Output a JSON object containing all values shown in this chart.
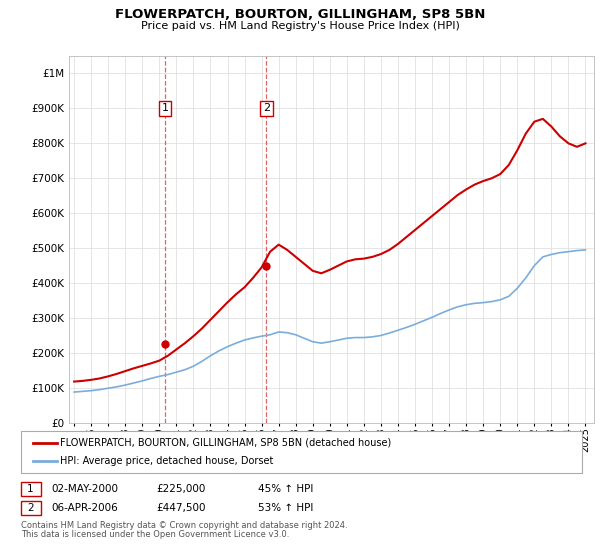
{
  "title": "FLOWERPATCH, BOURTON, GILLINGHAM, SP8 5BN",
  "subtitle": "Price paid vs. HM Land Registry's House Price Index (HPI)",
  "legend_label_red": "FLOWERPATCH, BOURTON, GILLINGHAM, SP8 5BN (detached house)",
  "legend_label_blue": "HPI: Average price, detached house, Dorset",
  "annotation1_label": "1",
  "annotation1_date": "02-MAY-2000",
  "annotation1_price": "£225,000",
  "annotation1_hpi": "45% ↑ HPI",
  "annotation2_label": "2",
  "annotation2_date": "06-APR-2006",
  "annotation2_price": "£447,500",
  "annotation2_hpi": "53% ↑ HPI",
  "footnote1": "Contains HM Land Registry data © Crown copyright and database right 2024.",
  "footnote2": "This data is licensed under the Open Government Licence v3.0.",
  "red_color": "#cc0000",
  "blue_color": "#7aaddc",
  "marker_color": "#cc0000",
  "sale1_x": 2000.33,
  "sale1_y": 225000,
  "sale2_x": 2006.27,
  "sale2_y": 447500,
  "xlim": [
    1994.7,
    2025.5
  ],
  "ylim": [
    0,
    1050000
  ],
  "background_color": "#ffffff",
  "grid_color": "#e0e0e0",
  "hpi_years": [
    1995.0,
    1995.5,
    1996.0,
    1996.5,
    1997.0,
    1997.5,
    1998.0,
    1998.5,
    1999.0,
    1999.5,
    2000.0,
    2000.5,
    2001.0,
    2001.5,
    2002.0,
    2002.5,
    2003.0,
    2003.5,
    2004.0,
    2004.5,
    2005.0,
    2005.5,
    2006.0,
    2006.5,
    2007.0,
    2007.5,
    2008.0,
    2008.5,
    2009.0,
    2009.5,
    2010.0,
    2010.5,
    2011.0,
    2011.5,
    2012.0,
    2012.5,
    2013.0,
    2013.5,
    2014.0,
    2014.5,
    2015.0,
    2015.5,
    2016.0,
    2016.5,
    2017.0,
    2017.5,
    2018.0,
    2018.5,
    2019.0,
    2019.5,
    2020.0,
    2020.5,
    2021.0,
    2021.5,
    2022.0,
    2022.5,
    2023.0,
    2023.5,
    2024.0,
    2024.5,
    2025.0
  ],
  "hpi_values": [
    88000,
    90000,
    92000,
    95000,
    99000,
    103000,
    108000,
    114000,
    120000,
    127000,
    133000,
    138000,
    145000,
    152000,
    162000,
    176000,
    192000,
    206000,
    218000,
    228000,
    237000,
    243000,
    248000,
    252000,
    260000,
    258000,
    252000,
    242000,
    232000,
    228000,
    232000,
    237000,
    242000,
    244000,
    244000,
    246000,
    250000,
    257000,
    265000,
    273000,
    282000,
    292000,
    302000,
    313000,
    323000,
    332000,
    338000,
    342000,
    344000,
    347000,
    352000,
    362000,
    385000,
    415000,
    450000,
    475000,
    482000,
    487000,
    490000,
    493000,
    495000
  ],
  "red_years": [
    1995.0,
    1995.5,
    1996.0,
    1996.5,
    1997.0,
    1997.5,
    1998.0,
    1998.5,
    1999.0,
    1999.5,
    2000.0,
    2000.5,
    2001.0,
    2001.5,
    2002.0,
    2002.5,
    2003.0,
    2003.5,
    2004.0,
    2004.5,
    2005.0,
    2005.5,
    2006.0,
    2006.5,
    2007.0,
    2007.5,
    2008.0,
    2008.5,
    2009.0,
    2009.5,
    2010.0,
    2010.5,
    2011.0,
    2011.5,
    2012.0,
    2012.5,
    2013.0,
    2013.5,
    2014.0,
    2014.5,
    2015.0,
    2015.5,
    2016.0,
    2016.5,
    2017.0,
    2017.5,
    2018.0,
    2018.5,
    2019.0,
    2019.5,
    2020.0,
    2020.5,
    2021.0,
    2021.5,
    2022.0,
    2022.5,
    2023.0,
    2023.5,
    2024.0,
    2024.5,
    2025.0
  ],
  "red_values": [
    118000,
    120000,
    123000,
    127000,
    133000,
    140000,
    148000,
    156000,
    163000,
    170000,
    178000,
    192000,
    210000,
    228000,
    248000,
    270000,
    295000,
    320000,
    345000,
    368000,
    388000,
    415000,
    445000,
    490000,
    510000,
    495000,
    475000,
    455000,
    435000,
    428000,
    438000,
    450000,
    462000,
    468000,
    470000,
    475000,
    483000,
    495000,
    512000,
    532000,
    552000,
    572000,
    592000,
    612000,
    632000,
    652000,
    668000,
    682000,
    692000,
    700000,
    712000,
    738000,
    780000,
    828000,
    862000,
    870000,
    848000,
    820000,
    800000,
    790000,
    800000
  ]
}
